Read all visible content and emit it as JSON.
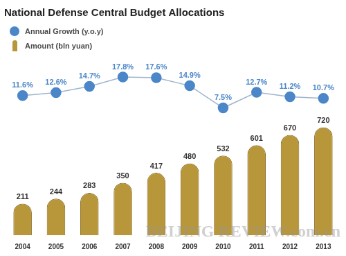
{
  "chart_data": {
    "type": "bar",
    "title": "National Defense Central Budget Allocations",
    "categories": [
      "2004",
      "2005",
      "2006",
      "2007",
      "2008",
      "2009",
      "2010",
      "2011",
      "2012",
      "2013"
    ],
    "series": [
      {
        "name": "Annual Growth (y.o.y)",
        "type": "line",
        "axis": "y2",
        "color": "#4a86c8",
        "marker": "circle",
        "values": [
          11.6,
          12.6,
          14.7,
          17.8,
          17.6,
          14.9,
          7.5,
          12.7,
          11.2,
          10.7
        ],
        "value_labels": [
          "11.6%",
          "12.6%",
          "14.7%",
          "17.8%",
          "17.6%",
          "14.9%",
          "7.5%",
          "12.7%",
          "11.2%",
          "10.7%"
        ]
      },
      {
        "name": "Amount (bln yuan)",
        "type": "bar",
        "color": "#b8963a",
        "values": [
          211,
          244,
          283,
          350,
          417,
          480,
          532,
          601,
          670,
          720
        ]
      }
    ],
    "ylim": [
      0,
      1200
    ],
    "yticks": [
      0,
      400,
      800,
      1200
    ],
    "y2lim": [
      -35,
      25
    ],
    "y2ticks": [
      -35,
      -25,
      -15,
      -5,
      5,
      15,
      25
    ],
    "grid": false,
    "legend": "top-left",
    "data_labels": true,
    "tick_labels": "x",
    "annotations": [
      "BEIJING REVIEW.com.cn"
    ]
  }
}
